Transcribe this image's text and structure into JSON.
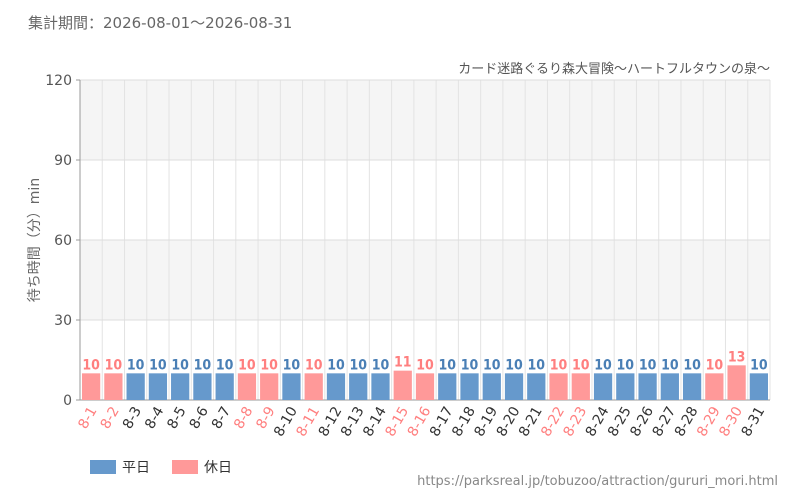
{
  "header": {
    "period": "集計期間：2026-08-01～2026-08-31"
  },
  "chart_data": {
    "type": "bar",
    "title": "カード迷路ぐるり森大冒険～ハートフルタウンの泉～",
    "ylabel": "待ち時間（分）min",
    "xlabel": "",
    "ylim": [
      0,
      120
    ],
    "yticks": [
      0,
      30,
      60,
      90,
      120
    ],
    "grid": true,
    "legend_position": "bottom-left",
    "categories": [
      "8-1",
      "8-2",
      "8-3",
      "8-4",
      "8-5",
      "8-6",
      "8-7",
      "8-8",
      "8-9",
      "8-10",
      "8-11",
      "8-12",
      "8-13",
      "8-14",
      "8-15",
      "8-16",
      "8-17",
      "8-18",
      "8-19",
      "8-20",
      "8-21",
      "8-22",
      "8-23",
      "8-24",
      "8-25",
      "8-26",
      "8-27",
      "8-28",
      "8-29",
      "8-30",
      "8-31"
    ],
    "values": [
      10,
      10,
      10,
      10,
      10,
      10,
      10,
      10,
      10,
      10,
      10,
      10,
      10,
      10,
      11,
      10,
      10,
      10,
      10,
      10,
      10,
      10,
      10,
      10,
      10,
      10,
      10,
      10,
      10,
      13,
      10
    ],
    "day_type": [
      "holiday",
      "holiday",
      "weekday",
      "weekday",
      "weekday",
      "weekday",
      "weekday",
      "holiday",
      "holiday",
      "weekday",
      "holiday",
      "weekday",
      "weekday",
      "weekday",
      "holiday",
      "holiday",
      "weekday",
      "weekday",
      "weekday",
      "weekday",
      "weekday",
      "holiday",
      "holiday",
      "weekday",
      "weekday",
      "weekday",
      "weekday",
      "weekday",
      "holiday",
      "holiday",
      "weekday"
    ],
    "legend": [
      {
        "key": "weekday",
        "label": "平日",
        "color": "#6699cc"
      },
      {
        "key": "holiday",
        "label": "休日",
        "color": "#ff9999"
      }
    ],
    "label_colors": {
      "weekday": "#4a7fb5",
      "holiday": "#ff7f7f"
    }
  },
  "footer": {
    "source": "https://parksreal.jp/tobuzoo/attraction/gururi_mori.html"
  }
}
